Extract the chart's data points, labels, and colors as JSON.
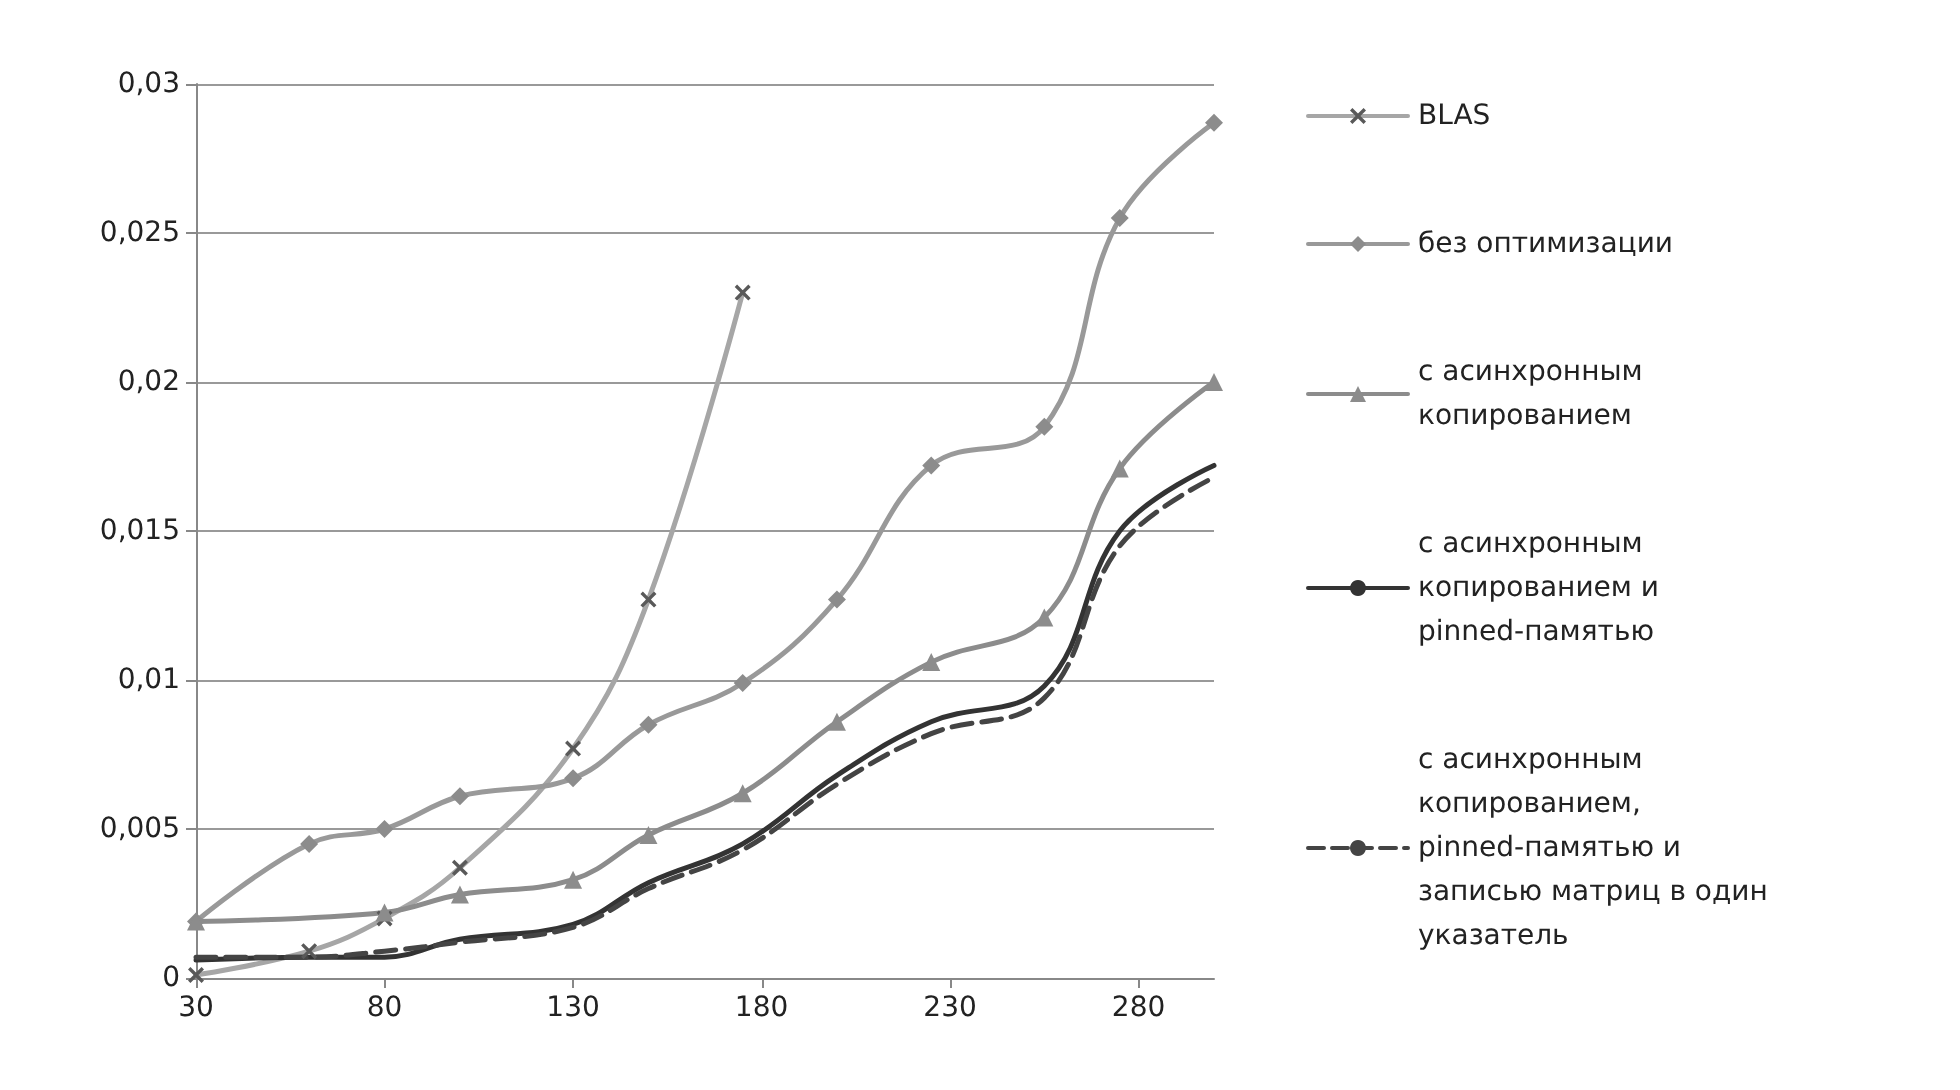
{
  "chart_data": {
    "type": "line",
    "xlim": [
      30,
      300
    ],
    "xticks": [
      30,
      80,
      130,
      180,
      230,
      280
    ],
    "ylim": [
      0,
      0.03
    ],
    "yticks": [
      {
        "value": 0,
        "label": "0"
      },
      {
        "value": 0.005,
        "label": "0,005"
      },
      {
        "value": 0.01,
        "label": "0,01"
      },
      {
        "value": 0.015,
        "label": "0,015"
      },
      {
        "value": 0.02,
        "label": "0,02"
      },
      {
        "value": 0.025,
        "label": "0,025"
      },
      {
        "value": 0.03,
        "label": "0,03"
      }
    ],
    "grid": "y",
    "legend": "right",
    "series": [
      {
        "name": "BLAS",
        "color": "#a6a6a6",
        "marker": "cross",
        "line_style": "solid",
        "x": [
          30,
          60,
          80,
          100,
          130,
          150,
          175
        ],
        "values": [
          0.0001,
          0.0009,
          0.002,
          0.0037,
          0.0077,
          0.0127,
          0.023
        ]
      },
      {
        "name": "без оптимизации",
        "color": "#999999",
        "marker": "diamond",
        "line_style": "solid",
        "x": [
          30,
          60,
          80,
          100,
          130,
          150,
          175,
          200,
          225,
          255,
          275,
          300
        ],
        "values": [
          0.0019,
          0.0045,
          0.005,
          0.0061,
          0.0067,
          0.0085,
          0.0099,
          0.0127,
          0.0172,
          0.0185,
          0.0255,
          0.0287
        ]
      },
      {
        "name": "с асинхронным копированием",
        "color": "#8c8c8c",
        "marker": "triangle",
        "line_style": "solid",
        "x": [
          30,
          80,
          100,
          130,
          150,
          175,
          200,
          225,
          255,
          275,
          300
        ],
        "values": [
          0.0019,
          0.0022,
          0.0028,
          0.0033,
          0.0048,
          0.0062,
          0.0086,
          0.0106,
          0.0121,
          0.0171,
          0.02
        ]
      },
      {
        "name": "с асинхронным копированием и pinned-памятью",
        "color": "#333333",
        "marker": "none",
        "line_style": "solid",
        "x": [
          30,
          60,
          80,
          100,
          130,
          150,
          175,
          200,
          225,
          255,
          275,
          300
        ],
        "values": [
          0.0006,
          0.0007,
          0.0007,
          0.0013,
          0.0018,
          0.0032,
          0.0045,
          0.0068,
          0.0086,
          0.0098,
          0.015,
          0.0172
        ]
      },
      {
        "name": "с асинхронным копированием, pinned-памятью и записью матриц в один указатель",
        "color": "#444444",
        "marker": "none",
        "line_style": "dashed",
        "x": [
          30,
          60,
          80,
          100,
          130,
          150,
          175,
          200,
          225,
          255,
          275,
          300
        ],
        "values": [
          0.0007,
          0.0007,
          0.0009,
          0.0012,
          0.0017,
          0.003,
          0.0043,
          0.0065,
          0.0082,
          0.0094,
          0.0145,
          0.0168
        ]
      }
    ]
  }
}
